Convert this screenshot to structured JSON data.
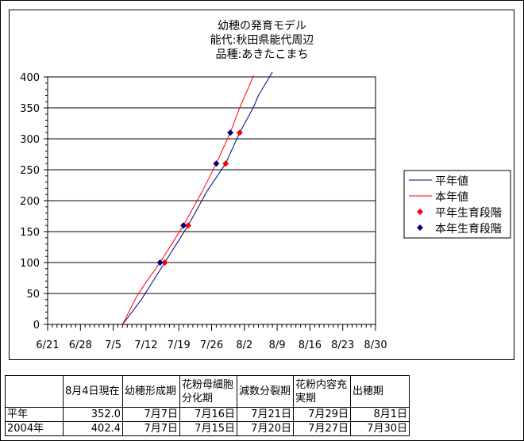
{
  "chart_data": {
    "type": "line",
    "title": [
      "幼穂の発育モデル",
      "能代:秋田県能代周辺",
      "品種:あきたこまち"
    ],
    "year": 2004,
    "xlim": [
      "6/21",
      "8/30"
    ],
    "x_ticks": [
      "6/21",
      "6/28",
      "7/5",
      "7/12",
      "7/19",
      "7/26",
      "8/2",
      "8/9",
      "8/16",
      "8/23",
      "8/30"
    ],
    "ylim": [
      0,
      400
    ],
    "y_ticks": [
      0,
      50,
      100,
      150,
      200,
      250,
      300,
      350,
      400
    ],
    "grid": "horizontal",
    "legend_position": "right",
    "series": [
      {
        "name": "平年値",
        "kind": "line",
        "color": "#000080",
        "points": [
          [
            "7/7",
            0
          ],
          [
            "7/11",
            40
          ],
          [
            "7/16",
            100
          ],
          [
            "7/21",
            160
          ],
          [
            "7/25",
            215
          ],
          [
            "7/29",
            260
          ],
          [
            "8/1",
            310
          ],
          [
            "8/4",
            352
          ],
          [
            "8/5",
            370
          ],
          [
            "8/8",
            408
          ]
        ]
      },
      {
        "name": "本年値",
        "kind": "line",
        "color": "#ff0000",
        "points": [
          [
            "7/7",
            0
          ],
          [
            "7/10",
            45
          ],
          [
            "7/12",
            68
          ],
          [
            "7/15",
            100
          ],
          [
            "7/20",
            160
          ],
          [
            "7/24",
            215
          ],
          [
            "7/27",
            260
          ],
          [
            "7/30",
            310
          ],
          [
            "8/1",
            350
          ],
          [
            "8/4",
            402.4
          ]
        ]
      },
      {
        "name": "平年生育段階",
        "kind": "marker",
        "color": "#ff0000",
        "points": [
          [
            "7/16",
            100
          ],
          [
            "7/21",
            160
          ],
          [
            "7/29",
            260
          ],
          [
            "8/1",
            310
          ]
        ]
      },
      {
        "name": "本年生育段階",
        "kind": "marker",
        "color": "#000080",
        "points": [
          [
            "7/15",
            100
          ],
          [
            "7/20",
            160
          ],
          [
            "7/27",
            260
          ],
          [
            "7/30",
            310
          ]
        ]
      }
    ]
  },
  "table": {
    "headers": [
      "",
      "8月4日現在",
      "幼穂形成期",
      "花粉母細胞分化期",
      "減数分裂期",
      "花粉内容充実期",
      "出穂期"
    ],
    "rows": [
      [
        "平年",
        "352.0",
        "7月7日",
        "7月16日",
        "7月21日",
        "7月29日",
        "8月1日"
      ],
      [
        "2004年",
        "402.4",
        "7月7日",
        "7月15日",
        "7月20日",
        "7月27日",
        "7月30日"
      ]
    ]
  }
}
